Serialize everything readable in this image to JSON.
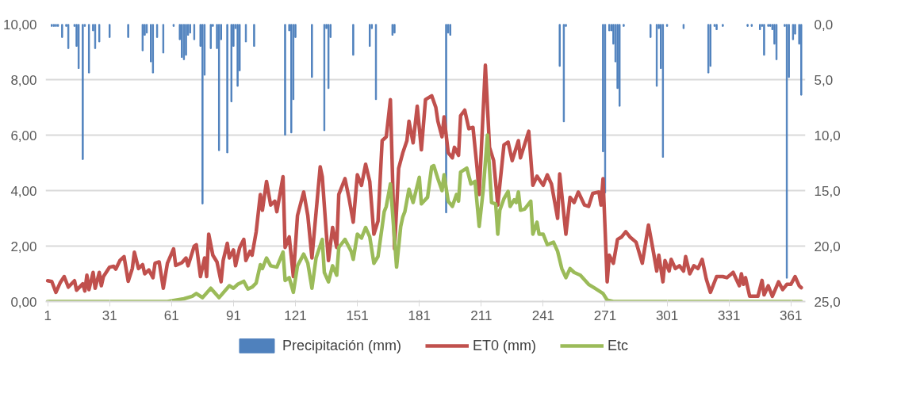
{
  "chart_data": {
    "type": "line",
    "xlim": [
      0,
      368
    ],
    "xticks": [
      1,
      31,
      61,
      91,
      121,
      151,
      181,
      211,
      241,
      271,
      301,
      331,
      361
    ],
    "ylim": [
      0,
      10
    ],
    "yticks": [
      {
        "value": 0,
        "label": "0,00"
      },
      {
        "value": 2,
        "label": "2,00"
      },
      {
        "value": 4,
        "label": "4,00"
      },
      {
        "value": 6,
        "label": "6,00"
      },
      {
        "value": 8,
        "label": "8,00"
      },
      {
        "value": 10,
        "label": "10,00"
      }
    ],
    "y2lim": [
      25,
      0
    ],
    "y2ticks": [
      {
        "value": 0,
        "label": "0,0"
      },
      {
        "value": 5,
        "label": "5,0"
      },
      {
        "value": 10,
        "label": "10,0"
      },
      {
        "value": 15,
        "label": "15,0"
      },
      {
        "value": 20,
        "label": "20,0"
      },
      {
        "value": 25,
        "label": "25,0"
      }
    ],
    "grid": "y",
    "legend": "bottom",
    "line_style": "solid",
    "marker": "none",
    "series": [
      {
        "name": "Precipitación (mm)",
        "type": "bar",
        "axis": "y2",
        "color": "#4f81bd",
        "x": [
          3,
          4,
          5,
          6,
          8,
          10,
          11,
          14,
          15,
          16,
          18,
          19,
          21,
          23,
          24,
          26,
          31,
          40,
          47,
          48,
          49,
          51,
          52,
          54,
          57,
          62,
          65,
          66,
          67,
          68,
          69,
          70,
          72,
          75,
          76,
          77,
          80,
          81,
          83,
          84,
          85,
          88,
          90,
          91,
          92,
          93,
          94,
          97,
          101,
          116,
          118,
          119,
          120,
          121,
          129,
          135,
          136,
          137,
          138,
          149,
          157,
          158,
          160,
          168,
          169,
          194,
          195,
          196,
          249,
          251,
          252,
          270,
          271,
          273,
          274,
          275,
          276,
          277,
          278,
          280,
          293,
          296,
          297,
          298,
          299,
          301,
          309,
          321,
          322,
          324,
          325,
          328,
          340,
          342,
          346,
          347,
          348,
          350,
          351,
          352,
          353,
          354,
          358,
          359,
          360,
          362,
          363,
          365,
          366
        ],
        "values": [
          0.2,
          0.2,
          0.2,
          0.2,
          1.2,
          0.2,
          2.2,
          0.2,
          2.0,
          4.0,
          12.2,
          0.2,
          4.4,
          0.6,
          2.2,
          1.6,
          1.2,
          1.2,
          2.4,
          1.0,
          0.8,
          3.4,
          4.4,
          1.2,
          2.6,
          0.2,
          1.4,
          3.0,
          3.2,
          2.8,
          1.0,
          0.8,
          1.4,
          2.0,
          16.2,
          4.6,
          2.2,
          0.2,
          2.2,
          11.4,
          1.4,
          11.6,
          7.0,
          2.0,
          0.4,
          5.6,
          4.2,
          1.6,
          2.0,
          10.0,
          0.6,
          9.8,
          6.8,
          1.2,
          4.8,
          9.6,
          0.4,
          5.8,
          1.2,
          2.8,
          2.0,
          0.4,
          6.8,
          1.0,
          0.8,
          17.0,
          0.8,
          1.0,
          3.8,
          8.8,
          0.2,
          11.5,
          15.2,
          0.6,
          0.6,
          1.8,
          3.4,
          5.8,
          7.4,
          0.2,
          1.2,
          5.6,
          0.4,
          4.0,
          12.0,
          0.2,
          0.4,
          4.4,
          3.8,
          0.2,
          0.5,
          0.2,
          0.2,
          0.2,
          0.5,
          0.2,
          2.8,
          0.2,
          0.2,
          0.5,
          1.8,
          3.2,
          0.2,
          22.9,
          4.8,
          1.4,
          0.9,
          1.8,
          6.4
        ]
      },
      {
        "name": "ET0 (mm)",
        "color": "#c0504d",
        "x": [
          1,
          3,
          5,
          7,
          9,
          11,
          14,
          15,
          18,
          19,
          20,
          21,
          23,
          24,
          26,
          27,
          28,
          31,
          33,
          34,
          36,
          38,
          40,
          42,
          43,
          45,
          47,
          48,
          50,
          52,
          53,
          55,
          57,
          59,
          62,
          63,
          66,
          68,
          69,
          72,
          73,
          75,
          77,
          78,
          79,
          81,
          83,
          85,
          86,
          88,
          89,
          91,
          92,
          94,
          96,
          97,
          99,
          100,
          102,
          104,
          105,
          107,
          109,
          111,
          112,
          115,
          116,
          118,
          120,
          122,
          125,
          127,
          129,
          133,
          134,
          136,
          137,
          139,
          141,
          142,
          145,
          147,
          149,
          151,
          153,
          155,
          157,
          159,
          161,
          163,
          165,
          167,
          169,
          171,
          173,
          175,
          176,
          178,
          180,
          182,
          184,
          187,
          189,
          190,
          192,
          193,
          195,
          197,
          198,
          200,
          201,
          203,
          205,
          207,
          209,
          210,
          213,
          215,
          217,
          219,
          222,
          224,
          226,
          229,
          230,
          234,
          236,
          238,
          241,
          243,
          245,
          248,
          249,
          252,
          254,
          256,
          258,
          261,
          263,
          265,
          268,
          269,
          270,
          272,
          273,
          275,
          277,
          279,
          281,
          283,
          286,
          289,
          292,
          294,
          296,
          297,
          299,
          300,
          302,
          303,
          305,
          307,
          309,
          310,
          312,
          314,
          316,
          318,
          320,
          322,
          325,
          328,
          330,
          333,
          336,
          337,
          338,
          339,
          341,
          343,
          345,
          347,
          348,
          350,
          352,
          355,
          357,
          359,
          361,
          363,
          365,
          366
        ],
        "values": [
          0.75,
          0.72,
          0.33,
          0.67,
          0.9,
          0.52,
          0.75,
          0.41,
          0.64,
          0.38,
          0.95,
          0.43,
          1.05,
          0.48,
          1.05,
          0.57,
          0.9,
          1.24,
          1.27,
          1.17,
          1.48,
          1.62,
          0.73,
          1.19,
          1.78,
          1.19,
          1.33,
          1.0,
          1.14,
          0.86,
          1.38,
          1.43,
          0.48,
          1.38,
          1.9,
          1.3,
          1.4,
          1.57,
          1.29,
          2.0,
          2.05,
          0.9,
          1.57,
          0.9,
          2.43,
          1.67,
          1.43,
          0.71,
          1.48,
          2.1,
          1.57,
          1.86,
          1.29,
          1.95,
          2.24,
          1.48,
          1.81,
          1.67,
          2.52,
          3.86,
          3.29,
          4.33,
          3.48,
          3.62,
          3.24,
          4.5,
          1.95,
          2.33,
          0.9,
          3.1,
          3.95,
          3.1,
          1.57,
          4.86,
          4.5,
          2.43,
          1.48,
          2.67,
          1.95,
          3.86,
          4.43,
          3.71,
          2.86,
          4.57,
          4.19,
          4.95,
          4.33,
          2.43,
          2.9,
          5.8,
          5.94,
          7.28,
          1.9,
          4.8,
          5.36,
          5.8,
          6.5,
          5.72,
          7.04,
          5.47,
          7.28,
          7.42,
          7.0,
          6.5,
          5.94,
          6.66,
          5.37,
          5.18,
          5.56,
          5.27,
          6.7,
          6.9,
          6.23,
          6.28,
          4.8,
          3.86,
          8.52,
          5.56,
          5.08,
          3.48,
          5.65,
          5.75,
          5.08,
          5.8,
          5.18,
          6.14,
          4.19,
          4.52,
          4.19,
          4.57,
          4.24,
          3.0,
          4.6,
          2.43,
          3.76,
          3.57,
          3.95,
          3.48,
          3.43,
          3.9,
          3.95,
          3.48,
          4.43,
          0.71,
          1.67,
          1.38,
          2.24,
          2.33,
          2.52,
          2.33,
          2.14,
          1.38,
          2.76,
          1.95,
          1.1,
          1.67,
          0.71,
          1.48,
          1.1,
          1.52,
          1.19,
          1.29,
          1.1,
          1.62,
          1.0,
          1.29,
          1.19,
          1.52,
          0.81,
          0.33,
          0.9,
          0.9,
          0.86,
          1.05,
          0.57,
          1.0,
          0.62,
          0.86,
          0.19,
          0.19,
          0.19,
          0.76,
          0.24,
          0.57,
          0.19,
          0.71,
          0.43,
          0.62,
          0.62,
          0.9,
          0.57,
          0.5
        ]
      },
      {
        "name": "Etc",
        "color": "#9bbb59",
        "x": [
          1,
          59,
          67,
          71,
          73,
          76,
          80,
          84,
          89,
          91,
          93,
          96,
          98,
          100,
          102,
          104,
          105,
          107,
          109,
          112,
          115,
          116,
          118,
          120,
          122,
          125,
          127,
          129,
          131,
          134,
          135,
          137,
          139,
          141,
          142,
          145,
          148,
          149,
          151,
          153,
          155,
          157,
          159,
          161,
          164,
          165,
          167,
          170,
          172,
          173,
          174,
          176,
          178,
          181,
          182,
          185,
          187,
          188,
          190,
          192,
          193,
          195,
          197,
          199,
          200,
          201,
          204,
          206,
          208,
          210,
          212,
          214,
          216,
          218,
          219,
          220,
          222,
          224,
          225,
          227,
          228,
          229,
          230,
          232,
          235,
          236,
          238,
          239,
          241,
          243,
          246,
          248,
          250,
          252,
          254,
          256,
          259,
          263,
          266,
          270,
          272,
          275,
          366
        ],
        "values": [
          0,
          0,
          0.1,
          0.19,
          0.29,
          0.14,
          0.48,
          0.14,
          0.57,
          0.48,
          0.62,
          0.73,
          0.45,
          0.52,
          0.67,
          1.33,
          1.19,
          1.57,
          1.29,
          1.24,
          1.78,
          0.76,
          0.86,
          0.33,
          1.29,
          1.71,
          1.38,
          0.48,
          1.57,
          2.24,
          1.05,
          0.71,
          1.29,
          0.95,
          1.95,
          2.24,
          1.81,
          1.52,
          2.43,
          2.29,
          2.67,
          2.33,
          1.38,
          1.62,
          3.24,
          3.43,
          4.24,
          1.24,
          2.71,
          3.05,
          3.24,
          4.05,
          3.57,
          4.48,
          3.52,
          3.76,
          4.86,
          4.9,
          4.43,
          4.0,
          4.57,
          3.62,
          3.43,
          3.86,
          3.62,
          4.67,
          4.81,
          4.24,
          4.33,
          2.71,
          4.05,
          6.0,
          3.57,
          3.52,
          2.43,
          3.29,
          3.71,
          3.97,
          3.43,
          3.67,
          3.57,
          3.95,
          3.29,
          3.33,
          3.62,
          2.43,
          2.86,
          2.43,
          2.43,
          2.05,
          2.14,
          1.81,
          1.19,
          0.86,
          1.19,
          1.05,
          0.95,
          0.62,
          0.48,
          0.29,
          0.05,
          0,
          0
        ]
      }
    ]
  }
}
